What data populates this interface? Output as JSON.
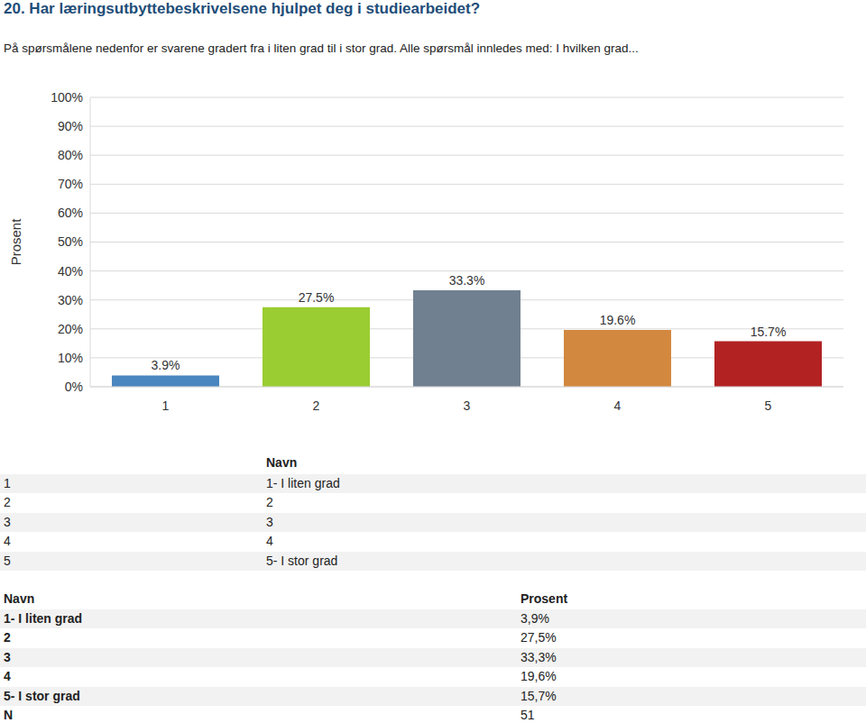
{
  "header": {
    "title": "20. Har læringsutbyttebeskrivelsene hjulpet deg i studiearbeidet?",
    "subtitle": "På spørsmålene nedenfor er svarene gradert fra i liten grad til i stor grad. Alle spørsmål innledes med: I hvilken grad..."
  },
  "chart_data": {
    "type": "bar",
    "y_label": "Prosent",
    "categories": [
      "1",
      "2",
      "3",
      "4",
      "5"
    ],
    "values": [
      3.9,
      27.5,
      33.3,
      19.6,
      15.7
    ],
    "value_labels": [
      "3.9%",
      "27.5%",
      "33.3%",
      "19.6%",
      "15.7%"
    ],
    "colors": [
      "#4a86c0",
      "#9acd32",
      "#708090",
      "#d2883e",
      "#b22222"
    ],
    "ylim": [
      0,
      100
    ],
    "yticks": [
      {
        "value": 0,
        "label": "0%"
      },
      {
        "value": 10,
        "label": "10%"
      },
      {
        "value": 20,
        "label": "20%"
      },
      {
        "value": 30,
        "label": "30%"
      },
      {
        "value": 40,
        "label": "40%"
      },
      {
        "value": 50,
        "label": "50%"
      },
      {
        "value": 60,
        "label": "60%"
      },
      {
        "value": 70,
        "label": "70%"
      },
      {
        "value": 80,
        "label": "80%"
      },
      {
        "value": 90,
        "label": "90%"
      },
      {
        "value": 100,
        "label": "100%"
      }
    ],
    "grid": true,
    "data_labels": true
  },
  "legend_table": {
    "header": "Navn",
    "rows": [
      [
        "1",
        "1- I liten grad"
      ],
      [
        "2",
        "2"
      ],
      [
        "3",
        "3"
      ],
      [
        "4",
        "4"
      ],
      [
        "5",
        "5- I stor grad"
      ]
    ]
  },
  "percent_table": {
    "columns": [
      "Navn",
      "Prosent"
    ],
    "rows": [
      [
        "1- I liten grad",
        "3,9%"
      ],
      [
        "2",
        "27,5%"
      ],
      [
        "3",
        "33,3%"
      ],
      [
        "4",
        "19,6%"
      ],
      [
        "5- I stor grad",
        "15,7%"
      ]
    ],
    "n_row": [
      "N",
      "51"
    ]
  }
}
